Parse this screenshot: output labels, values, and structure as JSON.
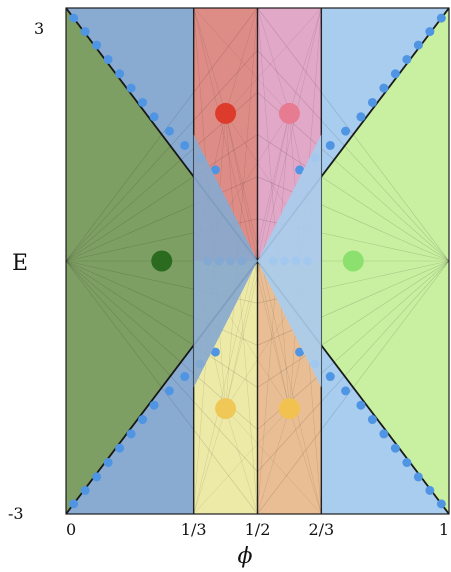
{
  "figure": {
    "y_axis_label": "E",
    "x_axis_label": "ϕ",
    "y_ticks": [
      {
        "label": "3",
        "value": 3
      },
      {
        "label": "-3",
        "value": -3
      }
    ],
    "x_ticks": [
      {
        "label": "0",
        "value": 0
      },
      {
        "label": "1/3",
        "value": 0.3333
      },
      {
        "label": "1/2",
        "value": 0.5
      },
      {
        "label": "2/3",
        "value": 0.6667
      },
      {
        "label": "1",
        "value": 1
      }
    ],
    "x_range": [
      0,
      1
    ],
    "y_range": [
      -3,
      3
    ]
  },
  "colors": {
    "blue_background": "#a9cdee",
    "blue_dark_region": "#88a9cf",
    "green_left": "#7e9f63",
    "green_right": "#c9f0a1",
    "red_band": "#e7887d",
    "pink_band": "#e7a4c2",
    "yellow_band": "#f7f1a2",
    "orange_band": "#efbd8a",
    "dot_blue": "#4f95e4",
    "dot_green_left": "#2b6b1f",
    "dot_green_right": "#8be06e",
    "dot_red": "#dd3b2c",
    "dot_pink": "#e67b92",
    "dot_yellow": "#f0c857",
    "dot_orange": "#f1c24f"
  },
  "markers": [
    {
      "name": "left-green-dot",
      "x": 0.25,
      "y": 0,
      "color_key": "dot_green_left"
    },
    {
      "name": "right-green-dot",
      "x": 0.75,
      "y": 0,
      "color_key": "dot_green_right"
    },
    {
      "name": "upper-red-dot",
      "x": 0.4167,
      "y": 1.75,
      "color_key": "dot_red"
    },
    {
      "name": "upper-pink-dot",
      "x": 0.5833,
      "y": 1.75,
      "color_key": "dot_pink"
    },
    {
      "name": "lower-yellow-dot",
      "x": 0.4167,
      "y": -1.75,
      "color_key": "dot_yellow"
    },
    {
      "name": "lower-orange-dot",
      "x": 0.5833,
      "y": -1.75,
      "color_key": "dot_orange"
    }
  ]
}
